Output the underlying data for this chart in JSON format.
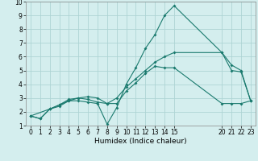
{
  "xlabel": "Humidex (Indice chaleur)",
  "ylabel": "",
  "xlim": [
    -0.5,
    23.5
  ],
  "ylim": [
    1,
    10
  ],
  "xticks": [
    0,
    1,
    2,
    3,
    4,
    5,
    6,
    7,
    8,
    9,
    10,
    11,
    12,
    13,
    14,
    15,
    20,
    21,
    22,
    23
  ],
  "yticks": [
    1,
    2,
    3,
    4,
    5,
    6,
    7,
    8,
    9,
    10
  ],
  "background_color": "#d4eeee",
  "grid_color": "#aed4d4",
  "line_color": "#1a7a6e",
  "line1_x": [
    0,
    1,
    2,
    3,
    4,
    5,
    6,
    7,
    8,
    9,
    10,
    11,
    12,
    13,
    14,
    15,
    20,
    21,
    22,
    23
  ],
  "line1_y": [
    1.7,
    1.5,
    2.2,
    2.5,
    2.8,
    2.8,
    2.7,
    2.6,
    1.1,
    2.3,
    4.0,
    5.2,
    6.6,
    7.6,
    9.0,
    9.7,
    6.3,
    5.0,
    4.9,
    2.8
  ],
  "line2_x": [
    0,
    1,
    2,
    3,
    4,
    5,
    6,
    7,
    8,
    9,
    10,
    11,
    12,
    13,
    14,
    15,
    20,
    21,
    22,
    23
  ],
  "line2_y": [
    1.7,
    1.5,
    2.2,
    2.5,
    2.9,
    3.0,
    2.9,
    2.7,
    2.6,
    2.6,
    3.5,
    4.1,
    4.8,
    5.3,
    5.2,
    5.2,
    2.6,
    2.6,
    2.6,
    2.8
  ],
  "line3_x": [
    0,
    2,
    3,
    4,
    5,
    6,
    7,
    8,
    9,
    10,
    11,
    12,
    13,
    14,
    15,
    20,
    21,
    22,
    23
  ],
  "line3_y": [
    1.7,
    2.2,
    2.4,
    2.8,
    3.0,
    3.1,
    3.0,
    2.6,
    3.0,
    3.8,
    4.4,
    5.0,
    5.6,
    6.0,
    6.3,
    6.3,
    5.4,
    5.0,
    2.8
  ],
  "marker_size": 2,
  "linewidth": 0.8,
  "tick_fontsize": 5.5,
  "xlabel_fontsize": 6.5
}
